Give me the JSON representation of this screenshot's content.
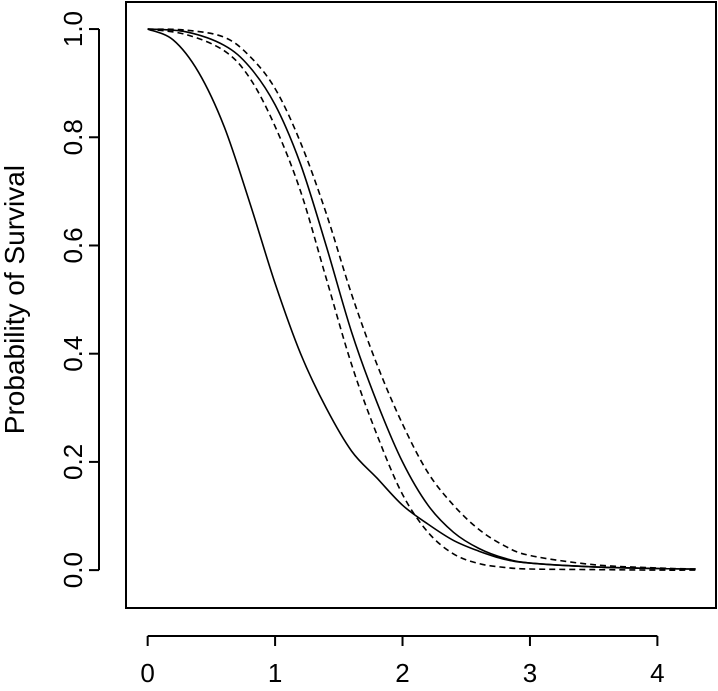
{
  "chart_data": {
    "type": "line",
    "title": "",
    "xlabel": "",
    "ylabel": "Probability of Survival",
    "xlim": [
      -0.17,
      4.46
    ],
    "ylim": [
      -0.07,
      1.05
    ],
    "xticks": [
      0,
      1,
      2,
      3,
      4
    ],
    "xtick_labels": [
      "0",
      "1",
      "2",
      "3",
      "4"
    ],
    "yticks": [
      0.0,
      0.2,
      0.4,
      0.6,
      0.8,
      1.0
    ],
    "ytick_labels": [
      "0.0",
      "0.2",
      "0.4",
      "0.6",
      "0.8",
      "1.0"
    ],
    "grid": false,
    "legend": "none",
    "series": [
      {
        "style": "solid",
        "x": [
          0,
          0.2,
          0.4,
          0.6,
          0.8,
          1.0,
          1.2,
          1.4,
          1.6,
          1.8,
          2.0,
          2.2,
          2.4,
          2.6,
          2.8,
          3.0,
          3.5,
          4.0,
          4.3
        ],
        "y": [
          1.0,
          0.98,
          0.92,
          0.82,
          0.68,
          0.53,
          0.4,
          0.3,
          0.22,
          0.17,
          0.12,
          0.085,
          0.055,
          0.035,
          0.02,
          0.013,
          0.006,
          0.003,
          0.002
        ]
      },
      {
        "style": "solid",
        "x": [
          0,
          0.3,
          0.6,
          0.8,
          1.0,
          1.2,
          1.4,
          1.6,
          1.8,
          2.0,
          2.2,
          2.4,
          2.6,
          2.8,
          3.0,
          3.5,
          4.0,
          4.3
        ],
        "y": [
          1.0,
          0.995,
          0.97,
          0.93,
          0.86,
          0.75,
          0.6,
          0.44,
          0.31,
          0.2,
          0.12,
          0.07,
          0.04,
          0.022,
          0.013,
          0.006,
          0.003,
          0.002
        ]
      },
      {
        "style": "dashed",
        "x": [
          0,
          0.3,
          0.6,
          0.8,
          1.0,
          1.2,
          1.4,
          1.6,
          1.8,
          2.0,
          2.2,
          2.4,
          2.6,
          2.8,
          3.0,
          3.5,
          4.0,
          4.3
        ],
        "y": [
          1.0,
          0.99,
          0.96,
          0.91,
          0.82,
          0.7,
          0.54,
          0.38,
          0.25,
          0.14,
          0.07,
          0.03,
          0.012,
          0.005,
          0.002,
          0.001,
          0.0,
          0.0
        ]
      },
      {
        "style": "dashed",
        "x": [
          0,
          0.3,
          0.6,
          0.8,
          1.0,
          1.2,
          1.4,
          1.6,
          1.8,
          2.0,
          2.2,
          2.4,
          2.6,
          2.8,
          3.0,
          3.5,
          4.0,
          4.3
        ],
        "y": [
          1.0,
          0.998,
          0.985,
          0.95,
          0.89,
          0.79,
          0.66,
          0.51,
          0.38,
          0.27,
          0.18,
          0.12,
          0.075,
          0.045,
          0.027,
          0.01,
          0.004,
          0.002
        ]
      }
    ]
  }
}
